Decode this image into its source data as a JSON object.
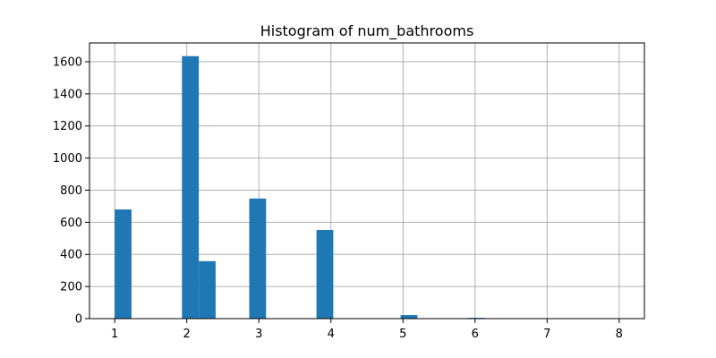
{
  "chart_data": {
    "type": "bar",
    "title": "Histogram of num_bathrooms",
    "xlabel": "",
    "ylabel": "",
    "xlim": [
      0.65,
      8.35
    ],
    "ylim": [
      0,
      1717
    ],
    "grid": true,
    "bar_color": "#1f77b4",
    "x_ticks": [
      1,
      2,
      3,
      4,
      5,
      6,
      7,
      8
    ],
    "y_ticks": [
      0,
      200,
      400,
      600,
      800,
      1000,
      1200,
      1400,
      1600
    ],
    "bins": [
      {
        "start": 1.0,
        "end": 1.233,
        "count": 680
      },
      {
        "start": 1.933,
        "end": 2.167,
        "count": 1635
      },
      {
        "start": 2.167,
        "end": 2.4,
        "count": 358
      },
      {
        "start": 2.867,
        "end": 3.1,
        "count": 748
      },
      {
        "start": 3.8,
        "end": 4.033,
        "count": 552
      },
      {
        "start": 4.967,
        "end": 5.2,
        "count": 22
      },
      {
        "start": 5.9,
        "end": 6.133,
        "count": 5
      },
      {
        "start": 7.8,
        "end": 8.033,
        "count": 1
      }
    ]
  }
}
